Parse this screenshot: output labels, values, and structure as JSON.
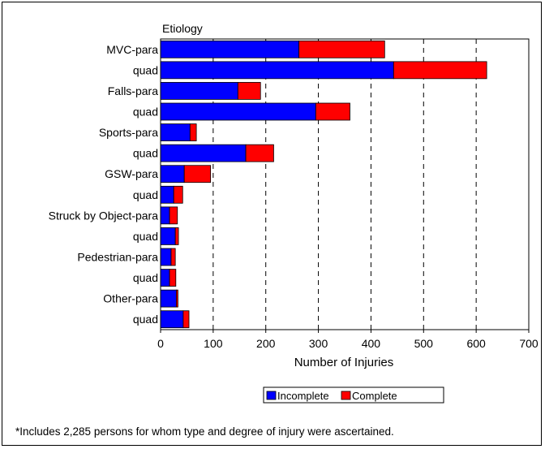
{
  "chart_data": {
    "type": "bar",
    "orientation": "horizontal",
    "stacked": true,
    "title": "Etiology",
    "xlabel": "Number of Injuries",
    "xlim": [
      0,
      700
    ],
    "xticks": [
      0,
      100,
      200,
      300,
      400,
      500,
      600,
      700
    ],
    "grid": "vertical dashed",
    "categories": [
      "MVC-para",
      "quad",
      "Falls-para",
      "quad",
      "Sports-para",
      "quad",
      "GSW-para",
      "quad",
      "Struck by Object-para",
      "quad",
      "Pedestrian-para",
      "quad",
      "Other-para",
      "quad"
    ],
    "series": [
      {
        "name": "Incomplete",
        "color": "#0000ff",
        "values": [
          263,
          443,
          147,
          295,
          56,
          162,
          45,
          25,
          17,
          28,
          20,
          17,
          30,
          43
        ]
      },
      {
        "name": "Complete",
        "color": "#ff0000",
        "values": [
          163,
          177,
          43,
          65,
          12,
          53,
          50,
          17,
          15,
          6,
          8,
          12,
          3,
          11
        ]
      }
    ],
    "legend_position": "bottom"
  },
  "footnote": "*Includes 2,285 persons for whom type and degree of injury were ascertained."
}
